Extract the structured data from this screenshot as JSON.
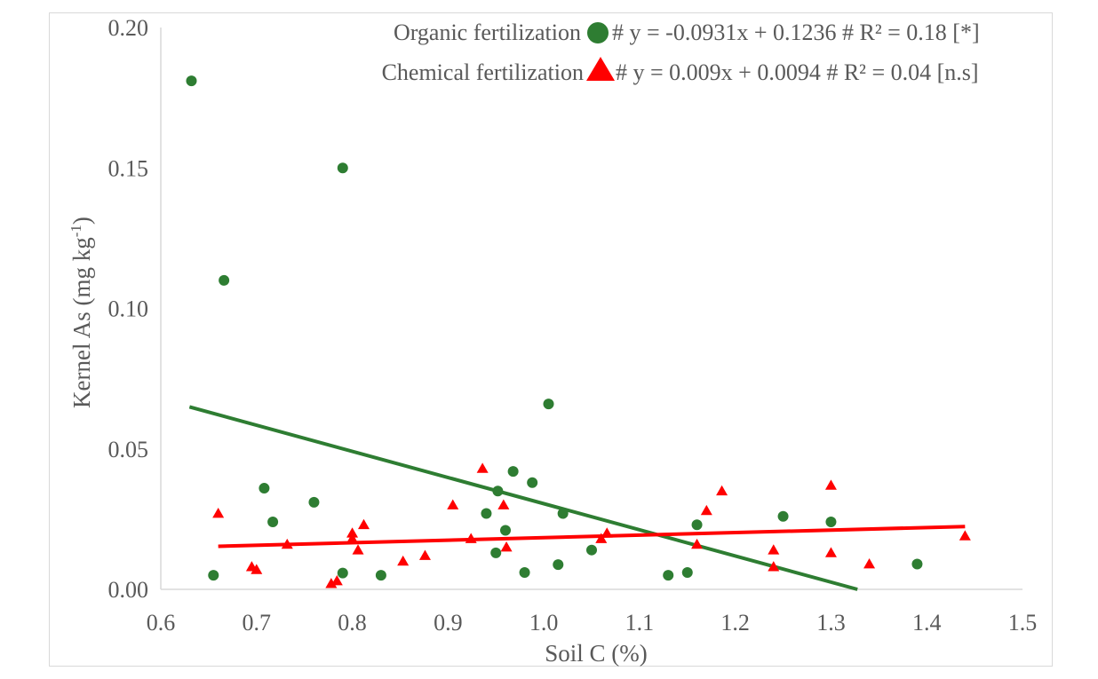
{
  "chart_data": {
    "type": "scatter",
    "title": "",
    "xlabel": "Soil C (%)",
    "ylabel_main": "Kernel As (mg kg",
    "ylabel_sup": "-1",
    "ylabel_close": ")",
    "xlim": [
      0.6,
      1.5
    ],
    "ylim": [
      0.0,
      0.2
    ],
    "x_ticks": [
      "0.6",
      "0.7",
      "0.8",
      "0.9",
      "1.0",
      "1.1",
      "1.2",
      "1.3",
      "1.4",
      "1.5"
    ],
    "y_ticks": [
      "0.00",
      "0.05",
      "0.10",
      "0.15",
      "0.20"
    ],
    "grid": false,
    "legend_position": "top-right",
    "series": [
      {
        "name": "Organic fertilization",
        "legend_suffix": "# y = -0.0931x + 0.1236 # R² = 0.18 [*]",
        "marker": "circle",
        "color": "#2e7d32",
        "trend": {
          "slope": -0.0931,
          "intercept": 0.1236,
          "x_start": 0.63,
          "x_end": 1.335
        },
        "points": [
          [
            0.632,
            0.181
          ],
          [
            0.655,
            0.005
          ],
          [
            0.666,
            0.11
          ],
          [
            0.708,
            0.036
          ],
          [
            0.717,
            0.024
          ],
          [
            0.76,
            0.031
          ],
          [
            0.79,
            0.15
          ],
          [
            0.79,
            0.0058
          ],
          [
            0.83,
            0.005
          ],
          [
            0.94,
            0.027
          ],
          [
            0.95,
            0.013
          ],
          [
            0.952,
            0.035
          ],
          [
            0.96,
            0.021
          ],
          [
            0.968,
            0.042
          ],
          [
            0.98,
            0.006
          ],
          [
            0.988,
            0.038
          ],
          [
            1.005,
            0.066
          ],
          [
            1.015,
            0.0088
          ],
          [
            1.02,
            0.027
          ],
          [
            1.05,
            0.014
          ],
          [
            1.13,
            0.005
          ],
          [
            1.15,
            0.006
          ],
          [
            1.16,
            0.023
          ],
          [
            1.25,
            0.026
          ],
          [
            1.3,
            0.024
          ],
          [
            1.39,
            0.009
          ]
        ]
      },
      {
        "name": "Chemical fertilization",
        "legend_suffix": "# y = 0.009x + 0.0094 # R² = 0.04 [n.s]",
        "marker": "triangle",
        "color": "#ff0000",
        "trend": {
          "slope": 0.009,
          "intercept": 0.0094,
          "x_start": 0.66,
          "x_end": 1.44
        },
        "points": [
          [
            0.66,
            0.027
          ],
          [
            0.695,
            0.008
          ],
          [
            0.7,
            0.007
          ],
          [
            0.732,
            0.016
          ],
          [
            0.778,
            0.002
          ],
          [
            0.784,
            0.003
          ],
          [
            0.8,
            0.018
          ],
          [
            0.8,
            0.02
          ],
          [
            0.806,
            0.014
          ],
          [
            0.812,
            0.023
          ],
          [
            0.853,
            0.01
          ],
          [
            0.876,
            0.012
          ],
          [
            0.905,
            0.03
          ],
          [
            0.924,
            0.018
          ],
          [
            0.936,
            0.043
          ],
          [
            0.958,
            0.03
          ],
          [
            0.961,
            0.015
          ],
          [
            1.06,
            0.018
          ],
          [
            1.066,
            0.02
          ],
          [
            1.16,
            0.016
          ],
          [
            1.17,
            0.028
          ],
          [
            1.186,
            0.035
          ],
          [
            1.24,
            0.014
          ],
          [
            1.24,
            0.008
          ],
          [
            1.3,
            0.037
          ],
          [
            1.3,
            0.013
          ],
          [
            1.34,
            0.009
          ],
          [
            1.44,
            0.019
          ]
        ]
      }
    ]
  }
}
